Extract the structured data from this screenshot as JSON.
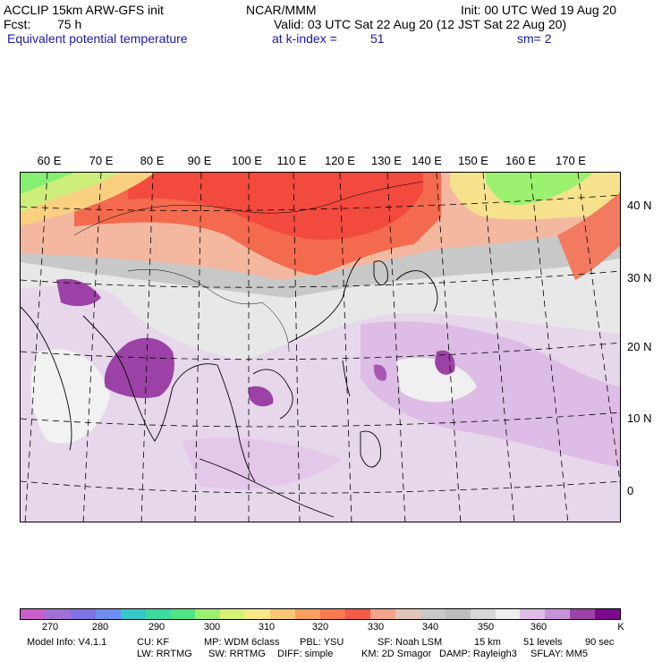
{
  "header": {
    "model": "ACCLIP 15km ARW-GFS init",
    "org": "NCAR/MMM",
    "init": "Init: 00 UTC Wed 19 Aug 20",
    "fcst_label": "Fcst:",
    "fcst_value": "75 h",
    "valid": "Valid: 03 UTC Sat 22 Aug 20 (12 JST Sat 22 Aug 20)",
    "field": "Equivalent potential temperature",
    "level": "at k-index =",
    "level_value": "51",
    "smooth": "sm= 2"
  },
  "map": {
    "lon_labels": [
      "60 E",
      "70 E",
      "80 E",
      "90 E",
      "100 E",
      "110 E",
      "120 E",
      "130 E",
      "140 E",
      "150 E",
      "160 E",
      "170 E"
    ],
    "lat_labels": [
      "40 N",
      "30 N",
      "20 N",
      "10 N",
      "0"
    ]
  },
  "colorbar": {
    "colors": [
      "#c85ec8",
      "#a070d6",
      "#7f74e4",
      "#6f8fef",
      "#35c8c8",
      "#3cdca0",
      "#4ee684",
      "#9cf070",
      "#d8f078",
      "#fae888",
      "#f8c878",
      "#f8a060",
      "#f87a4e",
      "#f05a46",
      "#f4a48a",
      "#e4c4b8",
      "#c8c8c8",
      "#bdbdbd",
      "#d7d7d7",
      "#eeeeee",
      "#e0bee6",
      "#c892d8",
      "#9c42a6",
      "#7a0a8c"
    ],
    "ticks": [
      "270",
      "280",
      "290",
      "300",
      "310",
      "320",
      "330",
      "340",
      "350",
      "360"
    ],
    "unit": "K"
  },
  "footer": {
    "line1": [
      "Model Info: V4.1.1",
      "CU: KF",
      "MP: WDM 6class",
      "PBL: YSU",
      "SF: Noah LSM",
      "15 km",
      "51 levels",
      "90 sec"
    ],
    "line2": [
      "LW: RRTMG",
      "SW: RRTMG",
      "DIFF: simple",
      "KM: 2D Smagor",
      "DAMP: Rayleigh3",
      "SFLAY: MM5"
    ]
  }
}
